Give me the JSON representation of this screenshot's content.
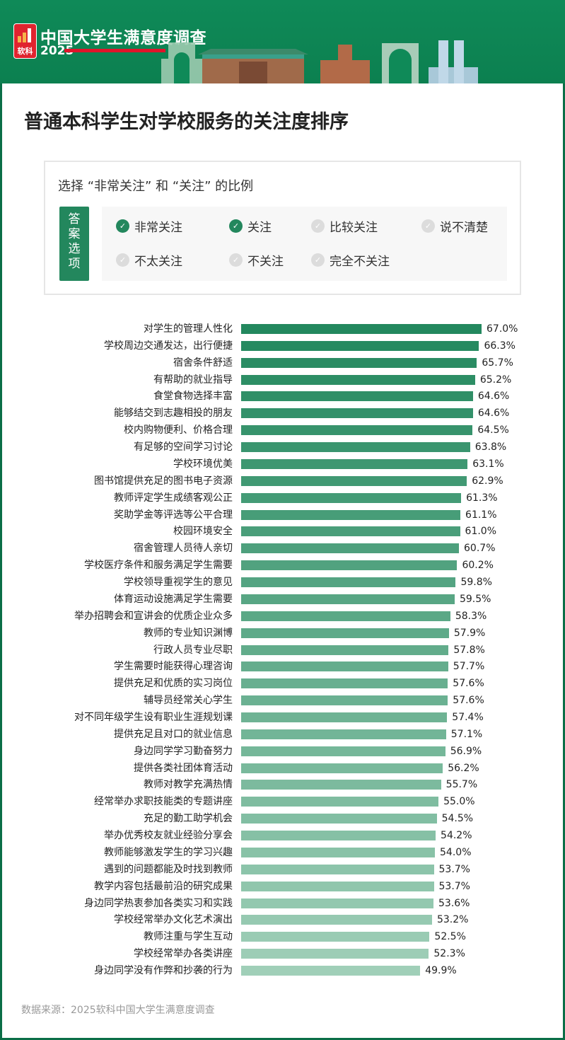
{
  "header": {
    "logo_text": "软科",
    "title": "中国大学生满意度调查",
    "year": "2025"
  },
  "page_title": "普通本科学生对学校服务的关注度排序",
  "legend": {
    "title": "选择 “非常关注” 和 “关注” 的比例",
    "answer_label": "答案选项",
    "options": [
      {
        "label": "非常关注",
        "selected": true
      },
      {
        "label": "关注",
        "selected": true
      },
      {
        "label": "比较关注",
        "selected": false
      },
      {
        "label": "说不清楚",
        "selected": false
      },
      {
        "label": "不太关注",
        "selected": false
      },
      {
        "label": "不关注",
        "selected": false
      },
      {
        "label": "完全不关注",
        "selected": false
      }
    ]
  },
  "colors": {
    "bar_top": "#23885e",
    "bar_bottom": "#a0cfb8",
    "header": "#0f8a58",
    "accent_red": "#e0142a"
  },
  "chart_data": {
    "type": "bar",
    "orientation": "horizontal",
    "title": "普通本科学生对学校服务的关注度排序",
    "unit": "%",
    "xlim": [
      0,
      100
    ],
    "categories": [
      "对学生的管理人性化",
      "学校周边交通发达，出行便捷",
      "宿舍条件舒适",
      "有帮助的就业指导",
      "食堂食物选择丰富",
      "能够结交到志趣相投的朋友",
      "校内购物便利、价格合理",
      "有足够的空间学习讨论",
      "学校环境优美",
      "图书馆提供充足的图书电子资源",
      "教师评定学生成绩客观公正",
      "奖助学金等评选等公平合理",
      "校园环境安全",
      "宿舍管理人员待人亲切",
      "学校医疗条件和服务满足学生需要",
      "学校领导重视学生的意见",
      "体育运动设施满足学生需要",
      "举办招聘会和宣讲会的优质企业众多",
      "教师的专业知识渊博",
      "行政人员专业尽职",
      "学生需要时能获得心理咨询",
      "提供充足和优质的实习岗位",
      "辅导员经常关心学生",
      "对不同年级学生设有职业生涯规划课",
      "提供充足且对口的就业信息",
      "身边同学学习勤奋努力",
      "提供各类社团体育活动",
      "教师对教学充满热情",
      "经常举办求职技能类的专题讲座",
      "充足的勤工助学机会",
      "举办优秀校友就业经验分享会",
      "教师能够激发学生的学习兴趣",
      "遇到的问题都能及时找到教师",
      "教学内容包括最前沿的研究成果",
      "身边同学热衷参加各类实习和实践",
      "学校经常举办文化艺术演出",
      "教师注重与学生互动",
      "学校经常举办各类讲座",
      "身边同学没有作弊和抄袭的行为"
    ],
    "values": [
      67.0,
      66.3,
      65.7,
      65.2,
      64.6,
      64.6,
      64.5,
      63.8,
      63.1,
      62.9,
      61.3,
      61.1,
      61.0,
      60.7,
      60.2,
      59.8,
      59.5,
      58.3,
      57.9,
      57.8,
      57.7,
      57.6,
      57.6,
      57.4,
      57.1,
      56.9,
      56.2,
      55.7,
      55.0,
      54.5,
      54.2,
      54.0,
      53.7,
      53.7,
      53.6,
      53.2,
      52.5,
      52.3,
      49.9
    ],
    "labels": [
      "67.0%",
      "66.3%",
      "65.7%",
      "65.2%",
      "64.6%",
      "64.6%",
      "64.5%",
      "63.8%",
      "63.1%",
      "62.9%",
      "61.3%",
      "61.1%",
      "61.0%",
      "60.7%",
      "60.2%",
      "59.8%",
      "59.5%",
      "58.3%",
      "57.9%",
      "57.8%",
      "57.7%",
      "57.6%",
      "57.6%",
      "57.4%",
      "57.1%",
      "56.9%",
      "56.2%",
      "55.7%",
      "55.0%",
      "54.5%",
      "54.2%",
      "54.0%",
      "53.7%",
      "53.7%",
      "53.6%",
      "53.2%",
      "52.5%",
      "52.3%",
      "49.9%"
    ]
  },
  "source": "数据来源：2025软科中国大学生满意度调查"
}
